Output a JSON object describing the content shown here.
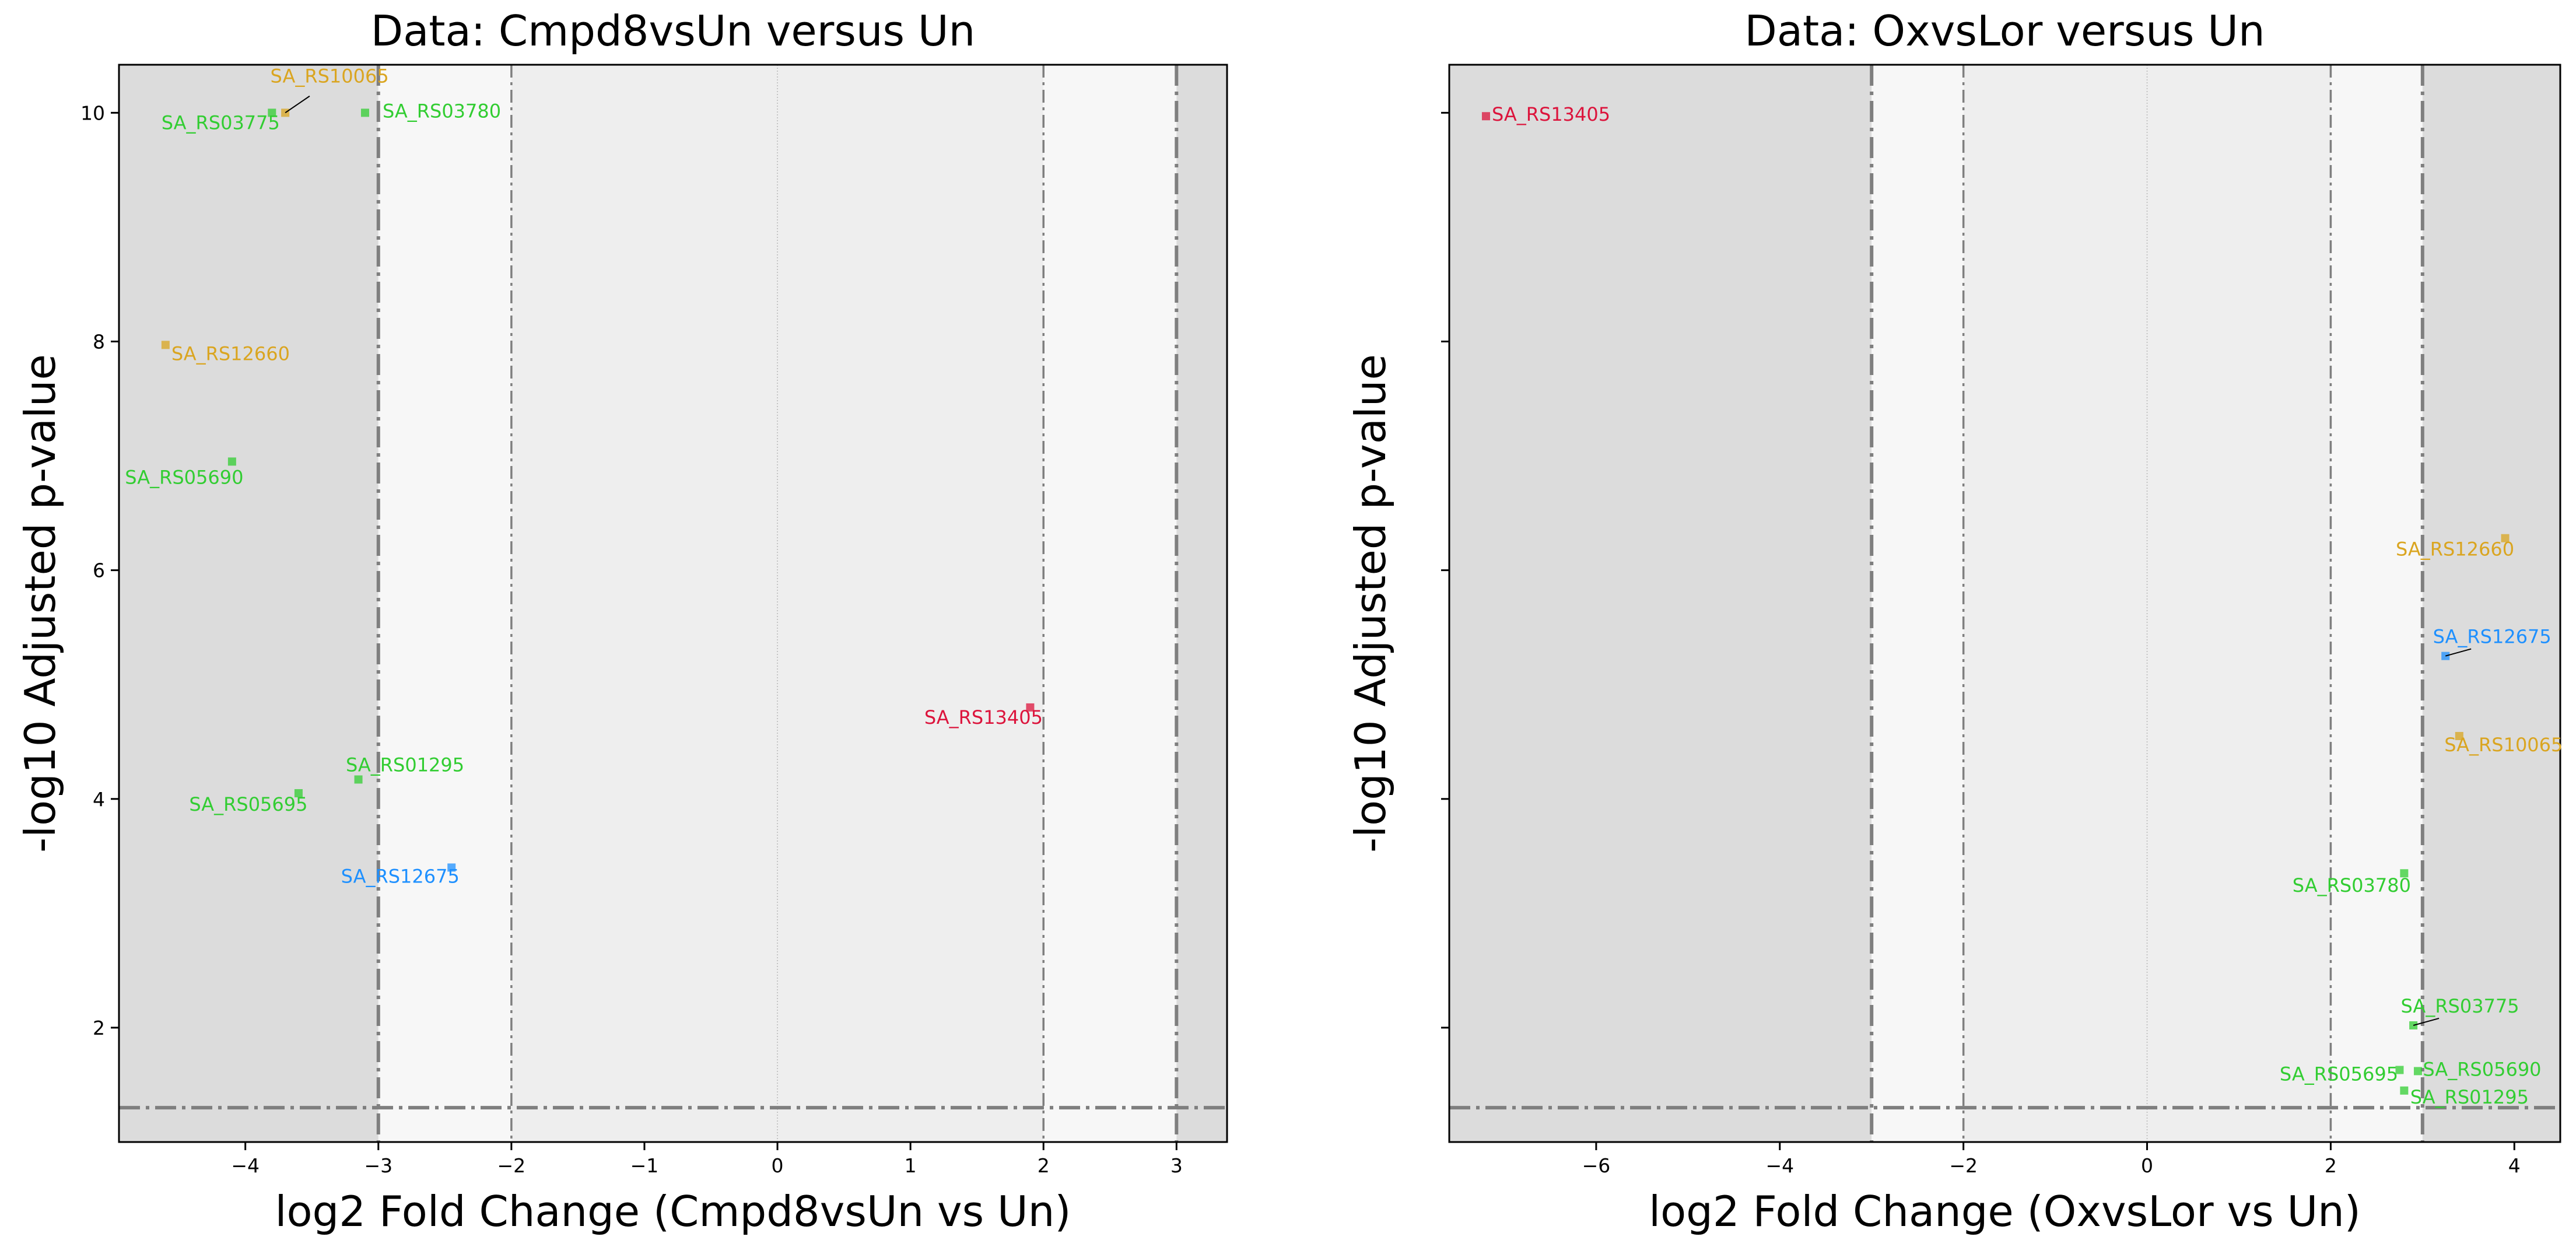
{
  "chart_data": [
    {
      "type": "scatter",
      "title": "Data: Cmpd8vsUn versus Un",
      "xlabel": "log2 Fold Change (Cmpd8vsUn vs Un)",
      "ylabel": "-log10 Adjusted p-value",
      "xlim": [
        -4.95,
        3.38
      ],
      "ylim": [
        1.0,
        10.42
      ],
      "xticks": [
        -4,
        -3,
        -2,
        -1,
        0,
        1,
        2,
        3
      ],
      "xtick_labels": [
        "−4",
        "−3",
        "−2",
        "−1",
        "0",
        "1",
        "2",
        "3"
      ],
      "yticks": [
        2,
        4,
        6,
        8,
        10
      ],
      "ytick_labels": [
        "2",
        "4",
        "6",
        "8",
        "10"
      ],
      "show_ytick_labels": true,
      "grid": false,
      "fc_lines": [
        -3,
        -2,
        2,
        3
      ],
      "p_line": 1.3,
      "points": [
        {
          "label": "SA_RS10065",
          "x": -3.7,
          "y": 10.0,
          "color": "#DAA520"
        },
        {
          "label": "SA_RS03775",
          "x": -3.8,
          "y": 10.0,
          "color": "#32CD32"
        },
        {
          "label": "SA_RS03780",
          "x": -3.1,
          "y": 10.0,
          "color": "#32CD32"
        },
        {
          "label": "SA_RS12660",
          "x": -4.6,
          "y": 7.97,
          "color": "#DAA520"
        },
        {
          "label": "SA_RS05690",
          "x": -4.1,
          "y": 6.95,
          "color": "#32CD32"
        },
        {
          "label": "SA_RS13405",
          "x": 1.9,
          "y": 4.8,
          "color": "#DC143C"
        },
        {
          "label": "SA_RS01295",
          "x": -3.15,
          "y": 4.17,
          "color": "#32CD32"
        },
        {
          "label": "SA_RS05695",
          "x": -3.6,
          "y": 4.05,
          "color": "#32CD32"
        },
        {
          "label": "SA_RS12675",
          "x": -2.45,
          "y": 3.4,
          "color": "#1E90FF"
        }
      ]
    },
    {
      "type": "scatter",
      "title": "Data: OxvsLor versus Un",
      "xlabel": "log2 Fold Change (OxvsLor vs Un)",
      "ylabel": "-log10 Adjusted p-value",
      "xlim": [
        -7.6,
        4.5
      ],
      "ylim": [
        1.0,
        10.42
      ],
      "xticks": [
        -6,
        -4,
        -2,
        0,
        2,
        4
      ],
      "xtick_labels": [
        "−6",
        "−4",
        "−2",
        "0",
        "2",
        "4"
      ],
      "yticks": [
        2,
        4,
        6,
        8,
        10
      ],
      "show_ytick_labels": false,
      "grid": false,
      "fc_lines": [
        -3,
        -2,
        2,
        3
      ],
      "p_line": 1.3,
      "points": [
        {
          "label": "SA_RS13405",
          "x": -7.2,
          "y": 9.97,
          "color": "#DC143C"
        },
        {
          "label": "SA_RS12660",
          "x": 3.9,
          "y": 6.28,
          "color": "#DAA520"
        },
        {
          "label": "SA_RS12675",
          "x": 3.25,
          "y": 5.25,
          "color": "#1E90FF"
        },
        {
          "label": "SA_RS10065",
          "x": 3.4,
          "y": 4.55,
          "color": "#DAA520"
        },
        {
          "label": "SA_RS03780",
          "x": 2.8,
          "y": 3.35,
          "color": "#32CD32"
        },
        {
          "label": "SA_RS03775",
          "x": 2.9,
          "y": 2.02,
          "color": "#32CD32"
        },
        {
          "label": "SA_RS05690",
          "x": 2.95,
          "y": 1.62,
          "color": "#32CD32"
        },
        {
          "label": "SA_RS05695",
          "x": 2.75,
          "y": 1.63,
          "color": "#32CD32"
        },
        {
          "label": "SA_RS01295",
          "x": 2.8,
          "y": 1.45,
          "color": "#32CD32"
        }
      ]
    }
  ]
}
